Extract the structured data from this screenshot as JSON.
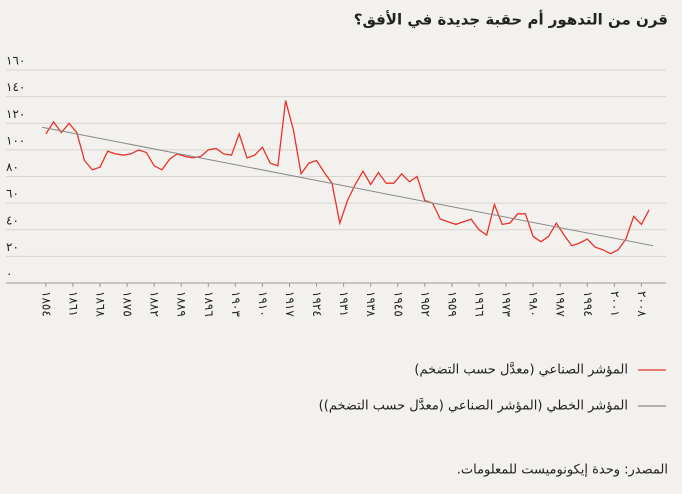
{
  "chart_data": {
    "type": "line",
    "title": "قرن من التدهور أم حقبة جديدة في الأفق؟",
    "source": "المصدر: وحدة إيكونوميست للمعلومات.",
    "series": [
      {
        "name": "المؤشر الصناعي (معدَّل حسب التضخم)",
        "color": "#e8322b",
        "x": [
          1854,
          1856,
          1858,
          1860,
          1862,
          1864,
          1866,
          1868,
          1870,
          1872,
          1874,
          1876,
          1878,
          1880,
          1882,
          1884,
          1886,
          1888,
          1890,
          1892,
          1894,
          1896,
          1898,
          1900,
          1902,
          1904,
          1906,
          1908,
          1910,
          1912,
          1914,
          1916,
          1918,
          1920,
          1922,
          1924,
          1926,
          1928,
          1930,
          1932,
          1934,
          1936,
          1938,
          1940,
          1942,
          1944,
          1946,
          1948,
          1950,
          1952,
          1954,
          1956,
          1958,
          1960,
          1962,
          1964,
          1966,
          1968,
          1970,
          1972,
          1974,
          1976,
          1978,
          1980,
          1982,
          1984,
          1986,
          1988,
          1990,
          1992,
          1994,
          1996,
          1998,
          2000,
          2002,
          2004,
          2006,
          2008,
          2010
        ],
        "values": [
          112,
          121,
          113,
          120,
          113,
          92,
          85,
          87,
          99,
          97,
          96,
          97,
          100,
          98,
          88,
          85,
          93,
          97,
          95,
          94,
          95,
          100,
          101,
          97,
          96,
          112,
          94,
          96,
          102,
          90,
          88,
          137,
          115,
          82,
          90,
          92,
          83,
          75,
          45,
          62,
          74,
          84,
          74,
          83,
          75,
          75,
          82,
          76,
          80,
          62,
          60,
          48,
          46,
          44,
          46,
          48,
          40,
          36,
          59,
          44,
          45,
          52,
          52,
          35,
          31,
          35,
          45,
          36,
          28,
          30,
          33,
          27,
          25,
          22,
          25,
          33,
          50,
          44,
          55
        ]
      },
      {
        "name": "المؤشر الخطي (المؤشر الصناعي (معدَّل حسب التضخم))",
        "color": "#8a8a8a",
        "x": [
          1853,
          2011
        ],
        "values": [
          117,
          28
        ]
      }
    ],
    "xlim": [
      1853,
      2011
    ],
    "ylim": [
      0,
      160
    ],
    "xticks": [
      {
        "value": 1854,
        "label": "١٨٥٤"
      },
      {
        "value": 1861,
        "label": "١٨٦١"
      },
      {
        "value": 1868,
        "label": "١٨٦٨"
      },
      {
        "value": 1875,
        "label": "١٨٧٥"
      },
      {
        "value": 1882,
        "label": "١٨٨٢"
      },
      {
        "value": 1889,
        "label": "١٨٨٩"
      },
      {
        "value": 1896,
        "label": "١٨٩٦"
      },
      {
        "value": 1903,
        "label": "١٩٠٣"
      },
      {
        "value": 1910,
        "label": "١٩١٠"
      },
      {
        "value": 1917,
        "label": "١٩١٧"
      },
      {
        "value": 1924,
        "label": "١٩٢٤"
      },
      {
        "value": 1931,
        "label": "١٩٣١"
      },
      {
        "value": 1938,
        "label": "١٩٣٨"
      },
      {
        "value": 1945,
        "label": "١٩٤٥"
      },
      {
        "value": 1952,
        "label": "١٩٥٢"
      },
      {
        "value": 1959,
        "label": "١٩٥٩"
      },
      {
        "value": 1966,
        "label": "١٩٦٦"
      },
      {
        "value": 1973,
        "label": "١٩٧٣"
      },
      {
        "value": 1980,
        "label": "١٩٨٠"
      },
      {
        "value": 1987,
        "label": "١٩٨٧"
      },
      {
        "value": 1994,
        "label": "١٩٩٤"
      },
      {
        "value": 2001,
        "label": "٢٠٠١"
      },
      {
        "value": 2008,
        "label": "٢٠٠٨"
      }
    ],
    "yticks": [
      {
        "value": 0,
        "label": "٠"
      },
      {
        "value": 20,
        "label": "٢٠"
      },
      {
        "value": 40,
        "label": "٤٠"
      },
      {
        "value": 60,
        "label": "٦٠"
      },
      {
        "value": 80,
        "label": "٨٠"
      },
      {
        "value": 100,
        "label": "١٠٠"
      },
      {
        "value": 120,
        "label": "١٢٠"
      },
      {
        "value": 140,
        "label": "١٤٠"
      },
      {
        "value": 160,
        "label": "١٦٠"
      }
    ],
    "grid": true
  }
}
